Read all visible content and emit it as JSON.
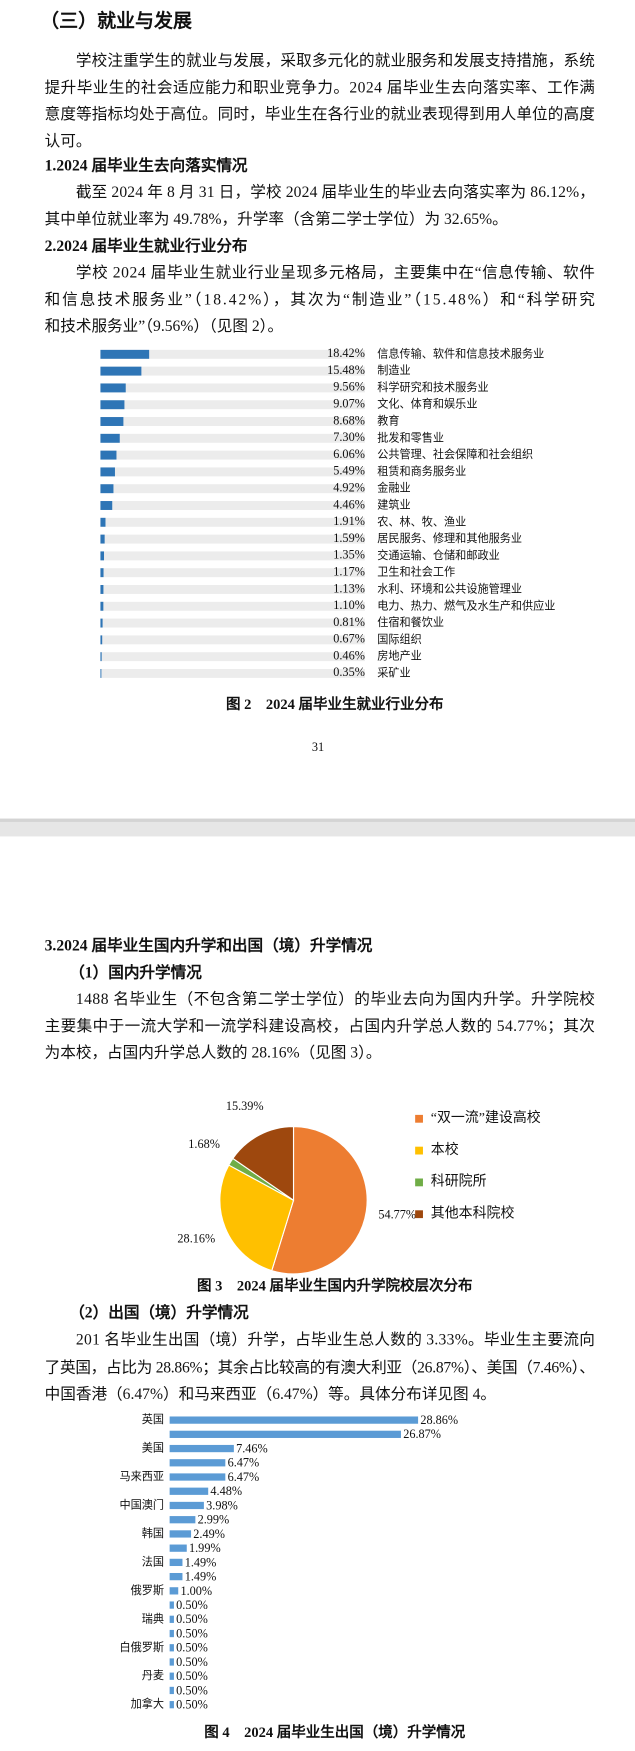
{
  "document": {
    "heading": "（三）就业与发展",
    "intro": [
      "学校注重学生的就业与发展，采取多元化的就业服务和发展支持措施，系统",
      "提升毕业生的社会适应能力和职业竞争力。2024 届毕业生去向落实率、工作满",
      "意度等指标均处于高位。同时，毕业生在各行业的就业表现得到用人单位的高度",
      "认可。"
    ],
    "s1_title": "1.2024 届毕业生去向落实情况",
    "s1_text": [
      "截至 2024 年 8 月 31 日，学校 2024 届毕业生的毕业去向落实率为 86.12%，",
      "其中单位就业率为 49.78%，升学率（含第二学士学位）为 32.65%。"
    ],
    "s2_title": "2.2024 届毕业生就业行业分布",
    "s2_text": [
      "学校 2024 届毕业生就业行业呈现多元格局，主要集中在“信息传输、软件",
      "和信息技术服务业”（18.42%），其次为“制造业”（15.48%）和“科学研究",
      "和技术服务业”（9.56%）（见图 2）。"
    ],
    "page_number": "31",
    "s3_title": "3.2024 届毕业生国内升学和出国（境）升学情况",
    "s3_sub1": "（1）国内升学情况",
    "s3_text1": [
      "1488 名毕业生（不包含第二学士学位）的毕业去向为国内升学。升学院校",
      "主要集中于一流大学和一流学科建设高校，占国内升学总人数的 54.77%；其次",
      "为本校，占国内升学总人数的 28.16%（见图 3）。"
    ],
    "s3_sub2": "（2）出国（境）升学情况",
    "s3_text2": [
      "201 名毕业生出国（境）升学，占毕业生总人数的 3.33%。毕业生主要流向",
      "了英国，占比为 28.86%；其余占比较高的有澳大利亚（26.87%）、美国（7.46%）、",
      "中国香港（6.47%）和马来西亚（6.47%）等。具体分布详见图 4。"
    ]
  },
  "chart_data": [
    {
      "type": "bar",
      "orientation": "horizontal",
      "title": "图 2　2024 届毕业生就业行业分布",
      "color": "#2E75B6",
      "track_color": "#ECECEC",
      "categories": [
        "信息传输、软件和信息技术服务业",
        "制造业",
        "科学研究和技术服务业",
        "文化、体育和娱乐业",
        "教育",
        "批发和零售业",
        "公共管理、社会保障和社会组织",
        "租赁和商务服务业",
        "金融业",
        "建筑业",
        "农、林、牧、渔业",
        "居民服务、修理和其他服务业",
        "交通运输、仓储和邮政业",
        "卫生和社会工作",
        "水利、环境和公共设施管理业",
        "电力、热力、燃气及水生产和供应业",
        "住宿和餐饮业",
        "国际组织",
        "房地产业",
        "采矿业"
      ],
      "values": [
        18.42,
        15.48,
        9.56,
        9.07,
        8.68,
        7.3,
        6.06,
        5.49,
        4.92,
        4.46,
        1.91,
        1.59,
        1.35,
        1.17,
        1.13,
        1.1,
        0.81,
        0.67,
        0.46,
        0.35
      ],
      "value_labels": [
        "18.42%",
        "15.48%",
        "9.56%",
        "9.07%",
        "8.68%",
        "7.30%",
        "6.06%",
        "5.49%",
        "4.92%",
        "4.46%",
        "1.91%",
        "1.59%",
        "1.35%",
        "1.17%",
        "1.13%",
        "1.10%",
        "0.81%",
        "0.67%",
        "0.46%",
        "0.35%"
      ],
      "xlim": [
        0,
        100
      ]
    },
    {
      "type": "pie",
      "title": "图 3　2024 届毕业生国内升学院校层次分布",
      "categories": [
        "“双一流”建设高校",
        "本校",
        "科研院所",
        "其他本科院校"
      ],
      "values": [
        54.77,
        28.16,
        1.68,
        15.39
      ],
      "value_labels": [
        "54.77%",
        "28.16%",
        "1.68%",
        "15.39%"
      ],
      "colors": [
        "#ED7D31",
        "#FFC000",
        "#70AD47",
        "#9E480E"
      ],
      "legend": "right"
    },
    {
      "type": "bar",
      "orientation": "horizontal",
      "title": "图 4　2024 届毕业生出国（境）升学情况",
      "color": "#5B9BD5",
      "categories": [
        "英国",
        null,
        "美国",
        null,
        "马来西亚",
        null,
        "中国澳门",
        null,
        "韩国",
        null,
        "法国",
        null,
        "俄罗斯",
        null,
        "瑞典",
        null,
        "白俄罗斯",
        null,
        "丹麦",
        null,
        "加拿大"
      ],
      "values": [
        28.86,
        26.87,
        7.46,
        6.47,
        6.47,
        4.48,
        3.98,
        2.99,
        2.49,
        1.99,
        1.49,
        1.49,
        1.0,
        0.5,
        0.5,
        0.5,
        0.5,
        0.5,
        0.5,
        0.5,
        0.5
      ],
      "value_labels": [
        "28.86%",
        "26.87%",
        "7.46%",
        "6.47%",
        "6.47%",
        "4.48%",
        "3.98%",
        "2.99%",
        "2.49%",
        "1.99%",
        "1.49%",
        "1.49%",
        "1.00%",
        "0.50%",
        "0.50%",
        "0.50%",
        "0.50%",
        "0.50%",
        "0.50%",
        "0.50%",
        "0.50%"
      ],
      "xlim": [
        0,
        35
      ]
    }
  ]
}
